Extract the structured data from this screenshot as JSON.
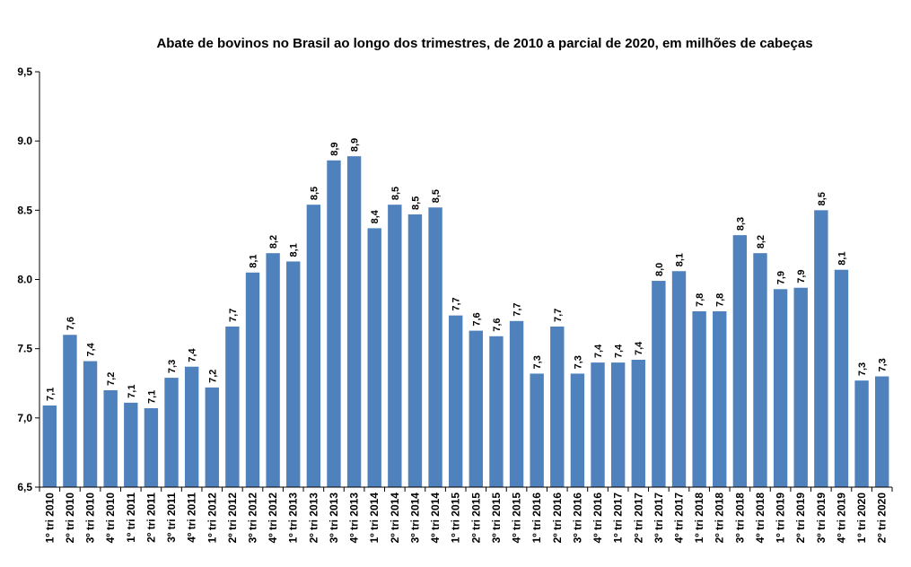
{
  "chart_data": {
    "type": "bar",
    "title": "Abate de bovinos no Brasil ao longo dos trimestres, de 2010 a parcial de 2020, em  milhões de cabeças",
    "xlabel": "",
    "ylabel": "",
    "ylim": [
      6.5,
      9.5
    ],
    "yticks": [
      "6,5",
      "7,0",
      "7.5",
      "8.0",
      "8.5",
      "9.0",
      "9,5"
    ],
    "ytick_values": [
      6.5,
      7.0,
      7.5,
      8.0,
      8.5,
      9.0,
      9.5
    ],
    "grid": false,
    "legend": "none",
    "colors": {
      "bar": "#4f81bd",
      "axis": "#000000",
      "text": "#000000"
    },
    "categories": [
      "1º tri 2010",
      "2º tri 2010",
      "3º tri 2010",
      "4º tri 2010",
      "1º tri 2011",
      "2º tri 2011",
      "3º tri 2011",
      "4º tri 2011",
      "1º tri 2012",
      "2º tri 2012",
      "3º tri 2012",
      "4º tri 2012",
      "1º tri 2013",
      "2º tri 2013",
      "3º tri 2013",
      "4º tri 2013",
      "1º tri 2014",
      "2º tri 2014",
      "3º tri 2014",
      "4º tri 2014",
      "1º tri 2015",
      "2º tri 2015",
      "3º tri 2015",
      "4º tri 2015",
      "1º tri 2016",
      "2º tri 2016",
      "3º tri 2016",
      "4º tri 2016",
      "1º tri 2017",
      "2º tri 2017",
      "3º tri 2017",
      "4º tri 2017",
      "1º tri 2018",
      "2º tri 2018",
      "3º tri 2018",
      "4º tri 2018",
      "1º tri 2019",
      "2º tri 2019",
      "3º tri 2019",
      "4º tri 2019",
      "1º tri 2020",
      "2º tri 2020"
    ],
    "values": [
      7.09,
      7.6,
      7.41,
      7.2,
      7.11,
      7.07,
      7.29,
      7.37,
      7.22,
      7.66,
      8.05,
      8.19,
      8.13,
      8.54,
      8.86,
      8.89,
      8.37,
      8.54,
      8.47,
      8.52,
      7.74,
      7.63,
      7.59,
      7.7,
      7.32,
      7.66,
      7.32,
      7.4,
      7.4,
      7.42,
      7.99,
      8.06,
      7.77,
      7.77,
      8.32,
      8.19,
      7.93,
      7.94,
      8.5,
      8.07,
      7.27,
      7.3
    ],
    "data_labels": [
      "7,1",
      "7,6",
      "7,4",
      "7,2",
      "7,1",
      "7,1",
      "7,3",
      "7,4",
      "7,2",
      "7,7",
      "8,1",
      "8,2",
      "8,1",
      "8,5",
      "8,9",
      "8,9",
      "8,4",
      "8,5",
      "8,5",
      "8,5",
      "7,7",
      "7,6",
      "7,6",
      "7,7",
      "7,3",
      "7,7",
      "7,3",
      "7,4",
      "7,4",
      "7,4",
      "8,0",
      "8,1",
      "7,8",
      "7,8",
      "8,3",
      "8,2",
      "7,9",
      "7,9",
      "8,5",
      "8,1",
      "7,3",
      "7,3"
    ]
  }
}
